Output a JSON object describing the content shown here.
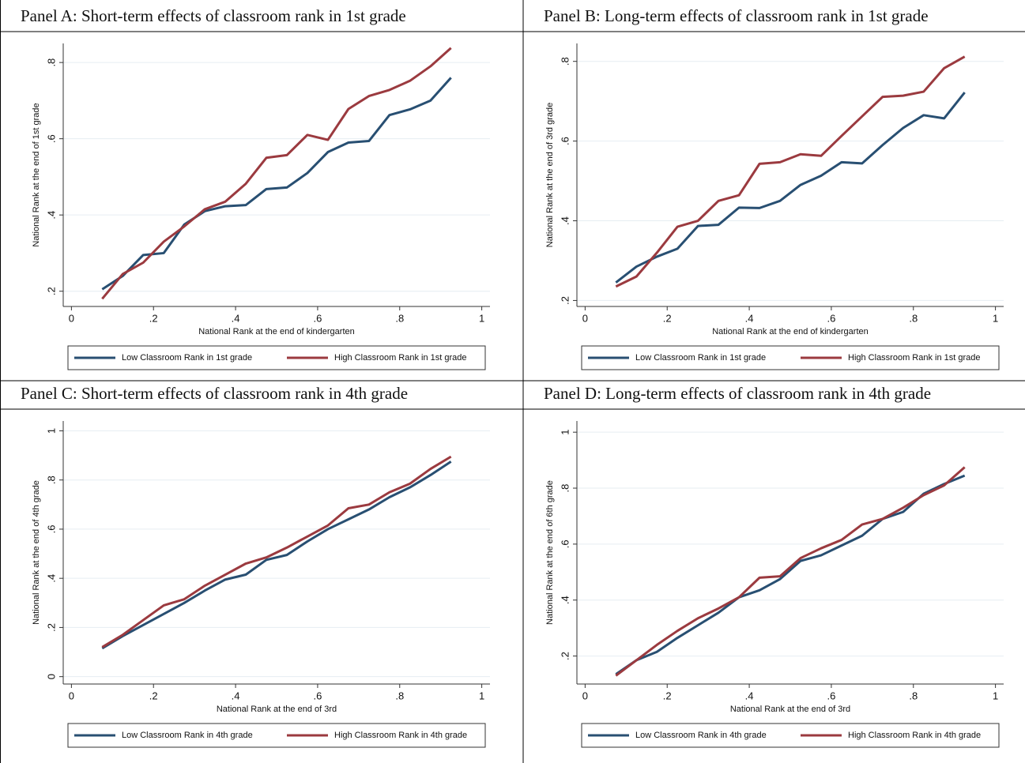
{
  "chart_data": [
    {
      "type": "line",
      "title": "Panel A: Short-term effects of classroom rank in 1st grade",
      "xlabel": "National Rank at the end of kindergarten",
      "ylabel": "National Rank at the end of 1st grade",
      "x": [
        0.075,
        0.125,
        0.175,
        0.225,
        0.275,
        0.325,
        0.375,
        0.425,
        0.475,
        0.525,
        0.575,
        0.625,
        0.675,
        0.725,
        0.775,
        0.825,
        0.875,
        0.925
      ],
      "series": [
        {
          "name": "Low Classroom Rank in 1st grade",
          "color": "#284f72",
          "values": [
            0.205,
            0.24,
            0.295,
            0.3,
            0.375,
            0.41,
            0.423,
            0.426,
            0.468,
            0.472,
            0.51,
            0.565,
            0.59,
            0.594,
            0.662,
            0.677,
            0.7,
            0.76
          ]
        },
        {
          "name": "High Classroom Rank in 1st grade",
          "color": "#9b3a3f",
          "values": [
            0.18,
            0.245,
            0.275,
            0.33,
            0.37,
            0.415,
            0.435,
            0.482,
            0.55,
            0.557,
            0.61,
            0.597,
            0.678,
            0.712,
            0.728,
            0.752,
            0.79,
            0.838
          ]
        }
      ],
      "xlim": [
        -0.02,
        1.02
      ],
      "ylim": [
        0.16,
        0.85
      ],
      "xticks": [
        0,
        {
          "value": 0.2,
          "label": ".2"
        },
        {
          "value": 0.4,
          "label": ".4"
        },
        {
          "value": 0.6,
          "label": ".6"
        },
        {
          "value": 0.8,
          "label": ".8"
        },
        1
      ],
      "yticks": [
        {
          "value": 0.2,
          "label": ".2"
        },
        {
          "value": 0.4,
          "label": ".4"
        },
        {
          "value": 0.6,
          "label": ".6"
        },
        {
          "value": 0.8,
          "label": ".8"
        }
      ],
      "grid": true,
      "legend": "bottom"
    },
    {
      "type": "line",
      "title": "Panel B: Long-term effects of classroom rank in 1st grade",
      "xlabel": "National Rank at the end of kindergarten",
      "ylabel": "National Rank at the end of 3rd grade",
      "x": [
        0.075,
        0.125,
        0.175,
        0.225,
        0.275,
        0.325,
        0.375,
        0.425,
        0.475,
        0.525,
        0.575,
        0.625,
        0.675,
        0.725,
        0.775,
        0.825,
        0.875,
        0.925
      ],
      "series": [
        {
          "name": "Low Classroom Rank in 1st grade",
          "color": "#284f72",
          "values": [
            0.245,
            0.285,
            0.31,
            0.33,
            0.387,
            0.39,
            0.433,
            0.432,
            0.45,
            0.49,
            0.513,
            0.547,
            0.544,
            0.59,
            0.633,
            0.665,
            0.657,
            0.722
          ]
        },
        {
          "name": "High Classroom Rank in 1st grade",
          "color": "#9b3a3f",
          "values": [
            0.235,
            0.26,
            0.32,
            0.385,
            0.4,
            0.45,
            0.464,
            0.543,
            0.547,
            0.567,
            0.563,
            0.613,
            0.662,
            0.711,
            0.714,
            0.724,
            0.783,
            0.812
          ]
        }
      ],
      "xlim": [
        -0.02,
        1.02
      ],
      "ylim": [
        0.185,
        0.845
      ],
      "xticks": [
        0,
        {
          "value": 0.2,
          "label": ".2"
        },
        {
          "value": 0.4,
          "label": ".4"
        },
        {
          "value": 0.6,
          "label": ".6"
        },
        {
          "value": 0.8,
          "label": ".8"
        },
        1
      ],
      "yticks": [
        {
          "value": 0.2,
          "label": ".2"
        },
        {
          "value": 0.4,
          "label": ".4"
        },
        {
          "value": 0.6,
          "label": ".6"
        },
        {
          "value": 0.8,
          "label": ".8"
        }
      ],
      "grid": true,
      "legend": "bottom"
    },
    {
      "type": "line",
      "title": "Panel C: Short-term effects of classroom rank in 4th grade",
      "xlabel": "National Rank at the end of 3rd",
      "ylabel": "National Rank at the end of 4th grade",
      "x": [
        0.075,
        0.125,
        0.175,
        0.225,
        0.275,
        0.325,
        0.375,
        0.425,
        0.475,
        0.525,
        0.575,
        0.625,
        0.675,
        0.725,
        0.775,
        0.825,
        0.875,
        0.925
      ],
      "series": [
        {
          "name": "Low Classroom Rank in 4th grade",
          "color": "#284f72",
          "values": [
            0.115,
            0.165,
            0.21,
            0.255,
            0.3,
            0.35,
            0.395,
            0.415,
            0.475,
            0.495,
            0.55,
            0.6,
            0.64,
            0.68,
            0.73,
            0.77,
            0.82,
            0.875
          ]
        },
        {
          "name": "High Classroom Rank in 4th grade",
          "color": "#9b3a3f",
          "values": [
            0.12,
            0.17,
            0.23,
            0.29,
            0.315,
            0.37,
            0.415,
            0.46,
            0.485,
            0.525,
            0.57,
            0.615,
            0.685,
            0.7,
            0.75,
            0.785,
            0.845,
            0.895
          ]
        }
      ],
      "xlim": [
        -0.02,
        1.02
      ],
      "ylim": [
        -0.03,
        1.04
      ],
      "xticks": [
        0,
        {
          "value": 0.2,
          "label": ".2"
        },
        {
          "value": 0.4,
          "label": ".4"
        },
        {
          "value": 0.6,
          "label": ".6"
        },
        {
          "value": 0.8,
          "label": ".8"
        },
        1
      ],
      "yticks": [
        0,
        {
          "value": 0.2,
          "label": ".2"
        },
        {
          "value": 0.4,
          "label": ".4"
        },
        {
          "value": 0.6,
          "label": ".6"
        },
        {
          "value": 0.8,
          "label": ".8"
        },
        1
      ],
      "grid": true,
      "legend": "bottom"
    },
    {
      "type": "line",
      "title": "Panel D: Long-term effects of classroom rank in 4th grade",
      "xlabel": "National Rank at the end of 3rd",
      "ylabel": "National Rank at the end of 6th grade",
      "x": [
        0.075,
        0.125,
        0.175,
        0.225,
        0.275,
        0.325,
        0.375,
        0.425,
        0.475,
        0.525,
        0.575,
        0.625,
        0.675,
        0.725,
        0.775,
        0.825,
        0.875,
        0.925
      ],
      "series": [
        {
          "name": "Low Classroom Rank in 4th grade",
          "color": "#284f72",
          "values": [
            0.135,
            0.185,
            0.215,
            0.265,
            0.31,
            0.355,
            0.41,
            0.435,
            0.475,
            0.54,
            0.56,
            0.595,
            0.63,
            0.69,
            0.715,
            0.78,
            0.815,
            0.845
          ]
        },
        {
          "name": "High Classroom Rank in 4th grade",
          "color": "#9b3a3f",
          "values": [
            0.13,
            0.185,
            0.24,
            0.29,
            0.335,
            0.37,
            0.41,
            0.48,
            0.485,
            0.55,
            0.585,
            0.615,
            0.67,
            0.69,
            0.73,
            0.775,
            0.81,
            0.875
          ]
        }
      ],
      "xlim": [
        -0.02,
        1.02
      ],
      "ylim": [
        0.1,
        1.04
      ],
      "xticks": [
        0,
        {
          "value": 0.2,
          "label": ".2"
        },
        {
          "value": 0.4,
          "label": ".4"
        },
        {
          "value": 0.6,
          "label": ".6"
        },
        {
          "value": 0.8,
          "label": ".8"
        },
        1
      ],
      "yticks": [
        {
          "value": 0.2,
          "label": ".2"
        },
        {
          "value": 0.4,
          "label": ".4"
        },
        {
          "value": 0.6,
          "label": ".6"
        },
        {
          "value": 0.8,
          "label": ".8"
        },
        1
      ],
      "grid": true,
      "legend": "bottom"
    }
  ]
}
